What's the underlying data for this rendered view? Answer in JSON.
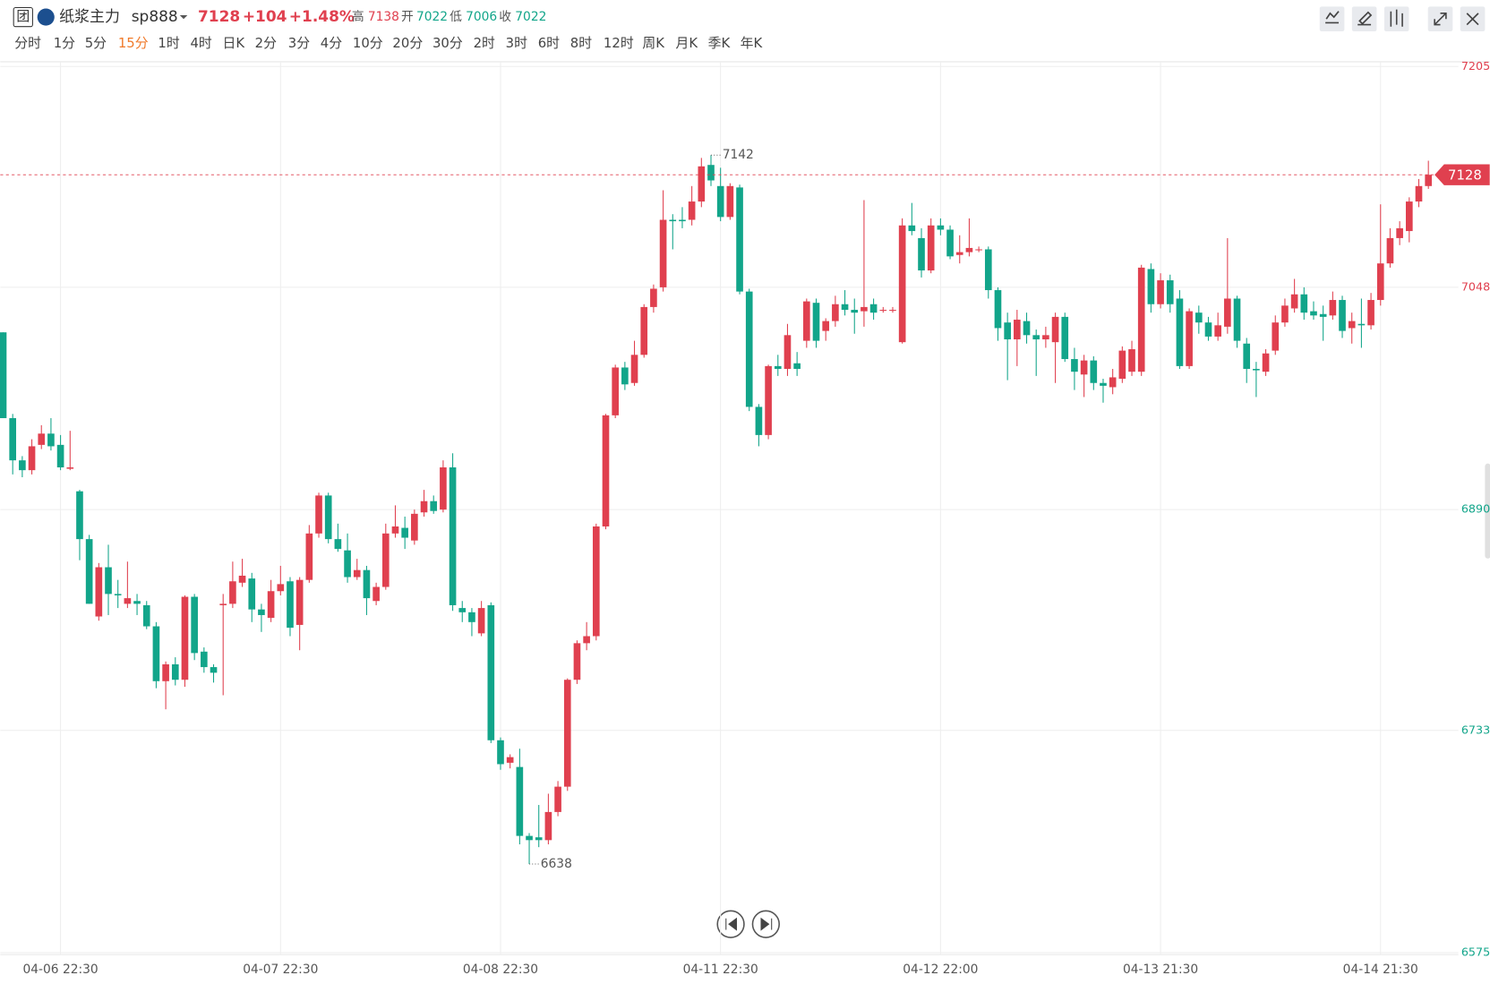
{
  "header": {
    "name": "纸浆主力",
    "code": "sp888",
    "last": "7128",
    "change": "+104",
    "change_pct": "+1.48%",
    "high_label": "高",
    "high": 7138,
    "open_label": "开",
    "open": 7022,
    "low_label": "低",
    "low": 7006,
    "close_label": "收",
    "close": 7022,
    "periods": [
      "分时",
      "1分",
      "5分",
      "15分",
      "1时",
      "4时",
      "日K",
      "2分",
      "3分",
      "4分",
      "10分",
      "20分",
      "30分",
      "2时",
      "3时",
      "6时",
      "8时",
      "12时",
      "周K",
      "月K",
      "季K",
      "年K"
    ],
    "active_period_index": 3
  },
  "chart_data": {
    "type": "candlestick",
    "up_color": "#e0404f",
    "down_color": "#12a58a",
    "grid": true,
    "ylim": [
      6575,
      7205
    ],
    "yticks": [
      6575,
      6733,
      6890,
      7048,
      7205
    ],
    "categories": [
      null,
      null,
      null,
      null,
      null,
      null,
      "04-06 22:30",
      null,
      null,
      null,
      null,
      null,
      null,
      null,
      null,
      null,
      null,
      null,
      null,
      null,
      null,
      null,
      null,
      null,
      null,
      null,
      null,
      null,
      null,
      "04-07 22:30",
      null,
      null,
      null,
      null,
      null,
      null,
      null,
      null,
      null,
      null,
      null,
      null,
      null,
      null,
      null,
      null,
      null,
      null,
      null,
      null,
      null,
      null,
      "04-08 22:30",
      null,
      null,
      null,
      null,
      null,
      null,
      null,
      null,
      null,
      null,
      null,
      null,
      null,
      null,
      null,
      null,
      null,
      null,
      null,
      null,
      null,
      null,
      "04-11 22:30",
      null,
      null,
      null,
      null,
      null,
      null,
      null,
      null,
      null,
      null,
      null,
      null,
      null,
      null,
      null,
      null,
      null,
      null,
      null,
      null,
      null,
      null,
      "04-12 22:00",
      null,
      null,
      null,
      null,
      null,
      null,
      null,
      null,
      null,
      null,
      null,
      null,
      null,
      null,
      null,
      null,
      null,
      null,
      null,
      null,
      null,
      null,
      "04-13 21:30",
      null,
      null,
      null,
      null,
      null,
      null,
      null,
      null,
      null,
      null,
      null,
      null,
      null,
      null,
      null,
      null,
      null,
      null,
      null,
      null,
      null,
      null,
      "04-14 21:30",
      null,
      null,
      null,
      null,
      null
    ],
    "ohlc": [
      [
        7016,
        7016,
        6955,
        6955
      ],
      [
        6955,
        6958,
        6915,
        6925
      ],
      [
        6925,
        6928,
        6913,
        6918
      ],
      [
        6918,
        6940,
        6915,
        6935
      ],
      [
        6936,
        6950,
        6933,
        6944
      ],
      [
        6944,
        6955,
        6932,
        6935
      ],
      [
        6936,
        6943,
        6918,
        6920
      ],
      [
        6919,
        6946,
        6918,
        6920
      ],
      [
        6903,
        6904,
        6854,
        6869
      ],
      [
        6869,
        6872,
        6823,
        6823
      ],
      [
        6814,
        6852,
        6811,
        6849
      ],
      [
        6849,
        6865,
        6815,
        6830
      ],
      [
        6830,
        6840,
        6820,
        6829
      ],
      [
        6823,
        6853,
        6820,
        6827
      ],
      [
        6825,
        6830,
        6815,
        6823
      ],
      [
        6822,
        6825,
        6805,
        6807
      ],
      [
        6807,
        6810,
        6763,
        6768
      ],
      [
        6768,
        6782,
        6748,
        6780
      ],
      [
        6780,
        6785,
        6765,
        6769
      ],
      [
        6769,
        6829,
        6764,
        6828
      ],
      [
        6828,
        6830,
        6783,
        6788
      ],
      [
        6789,
        6792,
        6774,
        6778
      ],
      [
        6778,
        6780,
        6767,
        6774
      ],
      [
        6822,
        6830,
        6758,
        6823
      ],
      [
        6823,
        6853,
        6820,
        6839
      ],
      [
        6838,
        6855,
        6835,
        6843
      ],
      [
        6841,
        6845,
        6810,
        6819
      ],
      [
        6819,
        6823,
        6803,
        6815
      ],
      [
        6813,
        6840,
        6810,
        6832
      ],
      [
        6832,
        6850,
        6829,
        6837
      ],
      [
        6839,
        6842,
        6800,
        6806
      ],
      [
        6808,
        6842,
        6790,
        6840
      ],
      [
        6840,
        6879,
        6838,
        6873
      ],
      [
        6873,
        6902,
        6870,
        6900
      ],
      [
        6900,
        6902,
        6866,
        6869
      ],
      [
        6869,
        6880,
        6860,
        6862
      ],
      [
        6861,
        6873,
        6838,
        6842
      ],
      [
        6842,
        6855,
        6840,
        6847
      ],
      [
        6847,
        6850,
        6815,
        6827
      ],
      [
        6825,
        6838,
        6822,
        6835
      ],
      [
        6835,
        6880,
        6833,
        6873
      ],
      [
        6873,
        6893,
        6870,
        6878
      ],
      [
        6877,
        6885,
        6862,
        6870
      ],
      [
        6868,
        6890,
        6865,
        6887
      ],
      [
        6888,
        6904,
        6885,
        6896
      ],
      [
        6896,
        6900,
        6887,
        6889
      ],
      [
        6890,
        6925,
        6888,
        6920
      ],
      [
        6920,
        6930,
        6818,
        6822
      ],
      [
        6820,
        6825,
        6810,
        6817
      ],
      [
        6817,
        6820,
        6800,
        6810
      ],
      [
        6802,
        6825,
        6800,
        6820
      ],
      [
        6822,
        6824,
        6724,
        6726
      ],
      [
        6726,
        6728,
        6705,
        6709
      ],
      [
        6710,
        6716,
        6706,
        6714
      ],
      [
        6707,
        6720,
        6652,
        6658
      ],
      [
        6658,
        6660,
        6638,
        6655
      ],
      [
        6657,
        6680,
        6650,
        6655
      ],
      [
        6655,
        6688,
        6652,
        6675
      ],
      [
        6675,
        6697,
        6672,
        6693
      ],
      [
        6693,
        6770,
        6690,
        6769
      ],
      [
        6769,
        6797,
        6766,
        6795
      ],
      [
        6795,
        6810,
        6790,
        6800
      ],
      [
        6800,
        6880,
        6797,
        6878
      ],
      [
        6878,
        6958,
        6876,
        6957
      ],
      [
        6957,
        6993,
        6955,
        6991
      ],
      [
        6991,
        6995,
        6975,
        6979
      ],
      [
        6980,
        7010,
        6978,
        7000
      ],
      [
        7000,
        7036,
        6998,
        7034
      ],
      [
        7034,
        7050,
        7030,
        7047
      ],
      [
        7048,
        7117,
        7045,
        7096
      ],
      [
        7096,
        7100,
        7075,
        7095
      ],
      [
        7096,
        7105,
        7090,
        7095
      ],
      [
        7096,
        7120,
        7092,
        7109
      ],
      [
        7109,
        7140,
        7105,
        7134
      ],
      [
        7135,
        7142,
        7120,
        7124
      ],
      [
        7120,
        7133,
        7095,
        7098
      ],
      [
        7098,
        7122,
        7096,
        7120
      ],
      [
        7119,
        7121,
        7043,
        7045
      ],
      [
        7045,
        7047,
        6960,
        6963
      ],
      [
        6963,
        6965,
        6935,
        6943
      ],
      [
        6943,
        6993,
        6940,
        6992
      ],
      [
        6992,
        7000,
        6985,
        6990
      ],
      [
        6990,
        7022,
        6985,
        7014
      ],
      [
        6994,
        7002,
        6985,
        6990
      ],
      [
        7010,
        7040,
        7005,
        7038
      ],
      [
        7037,
        7040,
        7005,
        7010
      ],
      [
        7017,
        7026,
        7010,
        7024
      ],
      [
        7024,
        7042,
        7020,
        7036
      ],
      [
        7036,
        7046,
        7028,
        7032
      ],
      [
        7032,
        7040,
        7015,
        7030
      ],
      [
        7031,
        7110,
        7020,
        7034
      ],
      [
        7036,
        7040,
        7025,
        7030
      ],
      [
        7032,
        7034,
        7030,
        7032
      ],
      [
        7032,
        7034,
        7030,
        7032
      ],
      [
        7009,
        7097,
        7008,
        7092
      ],
      [
        7092,
        7108,
        7085,
        7088
      ],
      [
        7083,
        7090,
        7055,
        7060
      ],
      [
        7060,
        7097,
        7058,
        7092
      ],
      [
        7092,
        7097,
        7085,
        7089
      ],
      [
        7089,
        7092,
        7068,
        7070
      ],
      [
        7071,
        7085,
        7065,
        7073
      ],
      [
        7073,
        7097,
        7070,
        7076
      ],
      [
        7075,
        7077,
        7073,
        7075
      ],
      [
        7075,
        7077,
        7040,
        7046
      ],
      [
        7046,
        7048,
        7010,
        7019
      ],
      [
        7023,
        7030,
        6982,
        7011
      ],
      [
        7011,
        7032,
        6992,
        7025
      ],
      [
        7024,
        7030,
        7008,
        7014
      ],
      [
        7014,
        7018,
        6985,
        7011
      ],
      [
        7011,
        7020,
        7005,
        7014
      ],
      [
        7009,
        7030,
        6980,
        7027
      ],
      [
        7027,
        7030,
        6995,
        6997
      ],
      [
        6997,
        7005,
        6975,
        6988
      ],
      [
        6986,
        7000,
        6970,
        6996
      ],
      [
        6996,
        6999,
        6975,
        6980
      ],
      [
        6980,
        6983,
        6966,
        6978
      ],
      [
        6977,
        6990,
        6972,
        6984
      ],
      [
        6983,
        7006,
        6980,
        7003
      ],
      [
        6988,
        7010,
        6985,
        7004
      ],
      [
        6988,
        7064,
        6985,
        7062
      ],
      [
        7061,
        7065,
        7030,
        7036
      ],
      [
        7036,
        7058,
        7033,
        7053
      ],
      [
        7053,
        7057,
        7030,
        7036
      ],
      [
        7040,
        7046,
        6990,
        6992
      ],
      [
        6992,
        7033,
        6990,
        7031
      ],
      [
        7030,
        7035,
        7015,
        7023
      ],
      [
        7023,
        7027,
        7010,
        7013
      ],
      [
        7013,
        7030,
        7010,
        7021
      ],
      [
        7020,
        7083,
        7015,
        7040
      ],
      [
        7040,
        7042,
        7005,
        7010
      ],
      [
        7008,
        7012,
        6980,
        6990
      ],
      [
        6990,
        6995,
        6970,
        6989
      ],
      [
        6988,
        7004,
        6985,
        7001
      ],
      [
        7003,
        7028,
        7000,
        7023
      ],
      [
        7023,
        7040,
        7020,
        7035
      ],
      [
        7033,
        7054,
        7030,
        7043
      ],
      [
        7043,
        7048,
        7025,
        7030
      ],
      [
        7031,
        7038,
        7025,
        7028
      ],
      [
        7029,
        7035,
        7010,
        7027
      ],
      [
        7028,
        7045,
        7025,
        7039
      ],
      [
        7039,
        7042,
        7012,
        7017
      ],
      [
        7019,
        7030,
        7008,
        7024
      ],
      [
        7022,
        7040,
        7005,
        7021
      ],
      [
        7021,
        7044,
        7018,
        7039
      ],
      [
        7039,
        7107,
        7035,
        7065
      ],
      [
        7065,
        7090,
        7062,
        7083
      ],
      [
        7083,
        7095,
        7078,
        7090
      ],
      [
        7088,
        7112,
        7080,
        7109
      ],
      [
        7109,
        7125,
        7105,
        7120
      ],
      [
        7120,
        7138,
        7118,
        7128
      ]
    ],
    "high_index": 74,
    "low_index": 55
  }
}
